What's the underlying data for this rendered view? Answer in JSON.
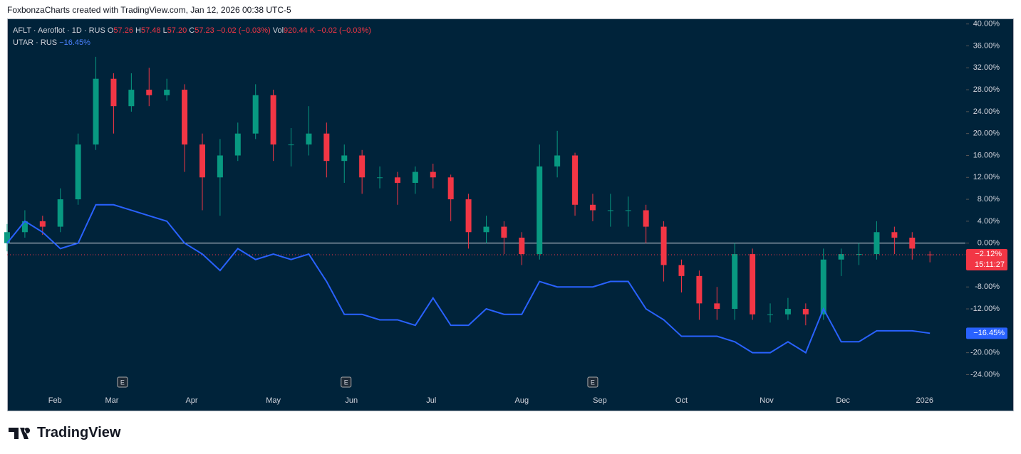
{
  "header": {
    "caption": "FoxbonzaCharts created with TradingView.com, Jan 12, 2026 00:38 UTC-5"
  },
  "legend": {
    "symbol": "AFLT · Aeroflot · 1D · RUS",
    "o_label": "O",
    "o": "57.26",
    "h_label": "H",
    "h": "57.48",
    "l_label": "L",
    "l": "57.20",
    "c_label": "C",
    "c": "57.23",
    "change": "−0.02 (−0.03%)",
    "vol_label": "Vol",
    "vol": "920.44 K",
    "vol_change": "−0.02 (−0.03%)",
    "compare": "UTAR · RUS",
    "compare_value": "−16.45%"
  },
  "footer": {
    "brand": "TradingView"
  },
  "chart_data": {
    "type": "candlestick",
    "xlim": [
      0,
      54
    ],
    "ylim": [
      -26.8,
      41
    ],
    "baseline": 0,
    "yticks": [
      {
        "value": 40,
        "label": "40.00%"
      },
      {
        "value": 36,
        "label": "36.00%"
      },
      {
        "value": 32,
        "label": "32.00%"
      },
      {
        "value": 28,
        "label": "28.00%"
      },
      {
        "value": 24,
        "label": "24.00%"
      },
      {
        "value": 20,
        "label": "20.00%"
      },
      {
        "value": 16,
        "label": "16.00%"
      },
      {
        "value": 12,
        "label": "12.00%"
      },
      {
        "value": 8,
        "label": "8.00%"
      },
      {
        "value": 4,
        "label": "4.00%"
      },
      {
        "value": 0,
        "label": "0.00%"
      },
      {
        "value": -8,
        "label": "-8.00%"
      },
      {
        "value": -12,
        "label": "-12.00%"
      },
      {
        "value": -20,
        "label": "-20.00%"
      },
      {
        "value": -24,
        "label": "-24.00%"
      }
    ],
    "xticks": [
      {
        "value": 2.7,
        "label": "Feb"
      },
      {
        "value": 5.9,
        "label": "Mar"
      },
      {
        "value": 10.4,
        "label": "Apr"
      },
      {
        "value": 15.0,
        "label": "May"
      },
      {
        "value": 19.4,
        "label": "Jun"
      },
      {
        "value": 23.9,
        "label": "Jul"
      },
      {
        "value": 29.0,
        "label": "Aug"
      },
      {
        "value": 33.4,
        "label": "Sep"
      },
      {
        "value": 38.0,
        "label": "Oct"
      },
      {
        "value": 42.8,
        "label": "Nov"
      },
      {
        "value": 47.1,
        "label": "Dec"
      },
      {
        "value": 51.7,
        "label": "2026"
      }
    ],
    "events": [
      {
        "x": 6.5,
        "label": "E"
      },
      {
        "x": 19.1,
        "label": "E"
      },
      {
        "x": 33.0,
        "label": "E"
      }
    ],
    "candles": {
      "name": "AFLT",
      "up_color": "#089981",
      "down_color": "#f23645",
      "open": [
        0,
        2,
        4,
        3,
        8,
        18,
        30,
        25,
        28,
        27,
        28,
        18,
        12,
        16,
        20,
        27,
        18,
        18,
        20,
        15,
        16,
        12,
        12,
        11,
        13,
        12,
        8,
        2,
        3,
        1,
        -2,
        14,
        16,
        7,
        6,
        6,
        6,
        3,
        -4,
        -6,
        -11,
        -12,
        -2,
        -13,
        -13,
        -12,
        -13,
        -3,
        -2,
        -2,
        2,
        1,
        -2.07
      ],
      "high": [
        3.5,
        6,
        5,
        10,
        20,
        34,
        31,
        31,
        32,
        30,
        29,
        20,
        19,
        22,
        29,
        28,
        21,
        25,
        22,
        18,
        17,
        14,
        13,
        14,
        14.5,
        12.5,
        9,
        5,
        4,
        2,
        18,
        20.5,
        16.5,
        9,
        9,
        8.5,
        7,
        4,
        -3,
        -5,
        -8,
        0,
        -1,
        -11,
        -10,
        -11,
        -1,
        -1,
        0,
        4,
        3,
        2,
        -1.5
      ],
      "low": [
        -1.5,
        1,
        1.5,
        2,
        7,
        17,
        20,
        24,
        25,
        26,
        13,
        6,
        5,
        15,
        19,
        15,
        14,
        16,
        12,
        11,
        9,
        10,
        7,
        9,
        10,
        4,
        -1,
        0,
        -2,
        -4,
        -3,
        12,
        5,
        4,
        3,
        3,
        0,
        -7,
        -9,
        -14,
        -14,
        -14,
        -14,
        -14.5,
        -14,
        -15,
        -14,
        -6,
        -4,
        -3,
        -2,
        -3,
        -3.5
      ],
      "close": [
        2,
        4,
        3,
        8,
        18,
        30,
        25,
        28,
        27,
        28,
        18,
        12,
        16,
        20,
        27,
        18,
        18,
        20,
        15,
        16,
        12,
        12,
        11,
        13,
        12,
        8,
        2,
        3,
        1,
        -2,
        14,
        16,
        7,
        6,
        6,
        6,
        3,
        -4,
        -6,
        -11,
        -12,
        -2,
        -13,
        -13,
        -12,
        -13,
        -3,
        -2,
        -2,
        2,
        1,
        -1,
        -2.12
      ],
      "price_label": "−2.12%",
      "countdown": "15:11:27"
    },
    "series": [
      {
        "name": "UTAR",
        "color": "#2962ff",
        "axis": "y",
        "values": [
          0,
          4,
          2,
          -1,
          0,
          7,
          7,
          6,
          5,
          4,
          0,
          -2,
          -5,
          -1,
          -3,
          -2,
          -3,
          -2,
          -7,
          -13,
          -13,
          -14,
          -14,
          -15,
          -10,
          -15,
          -15,
          -12,
          -13,
          -13,
          -7,
          -8,
          -8,
          -8,
          -7,
          -7,
          -12,
          -14,
          -17,
          -17,
          -17,
          -18,
          -20,
          -20,
          -18,
          -20,
          -12,
          -18,
          -18,
          -16,
          -16,
          -16,
          -16.45
        ],
        "price_label": "−16.45%"
      }
    ]
  }
}
